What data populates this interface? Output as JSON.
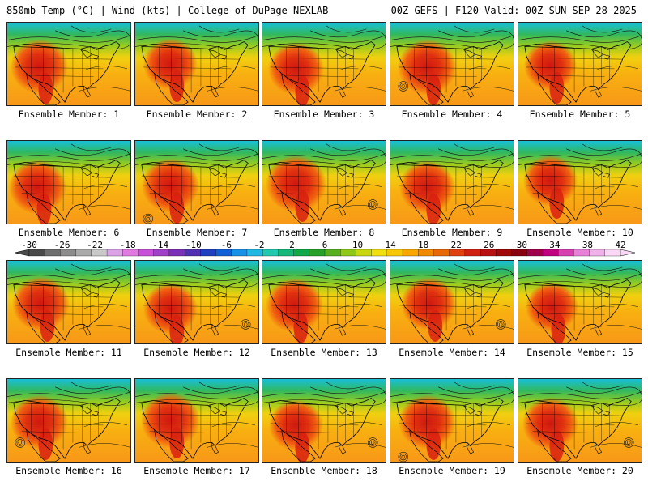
{
  "header": {
    "left": "850mb Temp (°C) | Wind (kts) | College of DuPage NEXLAB",
    "right": "00Z GEFS | F120 Valid: 00Z SUN SEP 28 2025"
  },
  "members": [
    {
      "label": "Ensemble Member: 1"
    },
    {
      "label": "Ensemble Member: 2"
    },
    {
      "label": "Ensemble Member: 3"
    },
    {
      "label": "Ensemble Member: 4"
    },
    {
      "label": "Ensemble Member: 5"
    },
    {
      "label": "Ensemble Member: 6"
    },
    {
      "label": "Ensemble Member: 7"
    },
    {
      "label": "Ensemble Member: 8"
    },
    {
      "label": "Ensemble Member: 9"
    },
    {
      "label": "Ensemble Member: 10"
    },
    {
      "label": "Ensemble Member: 11"
    },
    {
      "label": "Ensemble Member: 12"
    },
    {
      "label": "Ensemble Member: 13"
    },
    {
      "label": "Ensemble Member: 14"
    },
    {
      "label": "Ensemble Member: 15"
    },
    {
      "label": "Ensemble Member: 16"
    },
    {
      "label": "Ensemble Member: 17"
    },
    {
      "label": "Ensemble Member: 18"
    },
    {
      "label": "Ensemble Member: 19"
    },
    {
      "label": "Ensemble Member: 20"
    }
  ],
  "colorbar": {
    "labels": [
      "-30",
      "-26",
      "-22",
      "-18",
      "-14",
      "-10",
      "-6",
      "-2",
      "2",
      "6",
      "10",
      "14",
      "18",
      "22",
      "26",
      "30",
      "34",
      "38",
      "42"
    ],
    "colors": [
      "#4a4a4a",
      "#6e6e6e",
      "#8c8c8c",
      "#aaaaaa",
      "#c8c8c8",
      "#d9a3e6",
      "#e07ae0",
      "#c850d8",
      "#a040c8",
      "#7a30b8",
      "#5030b0",
      "#2040c0",
      "#1060d8",
      "#1890e8",
      "#20b8e0",
      "#20c8b0",
      "#18b878",
      "#10a848",
      "#28a028",
      "#58b020",
      "#90c818",
      "#c8d810",
      "#f0e010",
      "#f8c808",
      "#f8a800",
      "#f08800",
      "#e86808",
      "#e04010",
      "#d02010",
      "#b81010",
      "#a00808",
      "#880010",
      "#a00048",
      "#c00080",
      "#d840b0",
      "#e880d8",
      "#f0b0e8",
      "#f8d8f4"
    ]
  }
}
